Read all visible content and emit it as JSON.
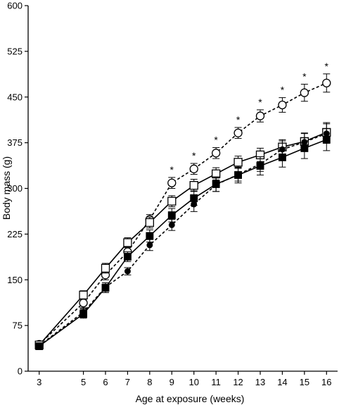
{
  "chart_data": {
    "type": "line",
    "title": "",
    "xlabel": "Age at exposure (weeks)",
    "ylabel": "Body mass (g)",
    "x": [
      3,
      5,
      6,
      7,
      8,
      9,
      10,
      11,
      12,
      13,
      14,
      15,
      16
    ],
    "x_tick_labels": [
      "3",
      "5",
      "6",
      "7",
      "8",
      "9",
      "10",
      "11",
      "12",
      "13",
      "14",
      "15",
      "16"
    ],
    "ylim": [
      0,
      600
    ],
    "y_ticks": [
      0,
      75,
      150,
      225,
      300,
      375,
      450,
      525,
      600
    ],
    "y_tick_labels": [
      "0",
      "75",
      "150",
      "225",
      "300",
      "375",
      "450",
      "525",
      "600"
    ],
    "grid": false,
    "legend": "none",
    "series": [
      {
        "marker": "open-circle",
        "line": "dashed",
        "color": "#000000",
        "values": [
          44,
          112,
          158,
          196,
          249,
          309,
          332,
          358,
          391,
          419,
          437,
          457,
          473
        ],
        "errors": [
          4,
          8,
          8,
          8,
          8,
          9,
          9,
          9,
          9,
          10,
          12,
          14,
          15
        ]
      },
      {
        "marker": "open-square",
        "line": "solid",
        "color": "#000000",
        "values": [
          43,
          125,
          169,
          211,
          244,
          279,
          305,
          324,
          343,
          355,
          368,
          377,
          392
        ],
        "errors": [
          4,
          7,
          8,
          8,
          9,
          9,
          10,
          10,
          10,
          11,
          12,
          14,
          16
        ]
      },
      {
        "marker": "filled-circle",
        "line": "dashed",
        "color": "#000000",
        "values": [
          42,
          97,
          138,
          164,
          207,
          240,
          274,
          306,
          323,
          340,
          364,
          376,
          390
        ],
        "errors": [
          4,
          6,
          7,
          6,
          9,
          9,
          12,
          11,
          11,
          12,
          14,
          14,
          16
        ]
      },
      {
        "marker": "filled-square",
        "line": "solid",
        "color": "#000000",
        "values": [
          41,
          94,
          137,
          188,
          222,
          256,
          284,
          307,
          322,
          337,
          351,
          366,
          380
        ],
        "errors": [
          4,
          7,
          8,
          8,
          10,
          11,
          12,
          12,
          13,
          15,
          16,
          17,
          18
        ]
      }
    ],
    "annotations": [
      {
        "x": 9,
        "text": "*"
      },
      {
        "x": 10,
        "text": "*"
      },
      {
        "x": 11,
        "text": "*"
      },
      {
        "x": 12,
        "text": "*"
      },
      {
        "x": 13,
        "text": "*"
      },
      {
        "x": 14,
        "text": "*"
      },
      {
        "x": 15,
        "text": "*"
      },
      {
        "x": 16,
        "text": "*"
      }
    ]
  }
}
